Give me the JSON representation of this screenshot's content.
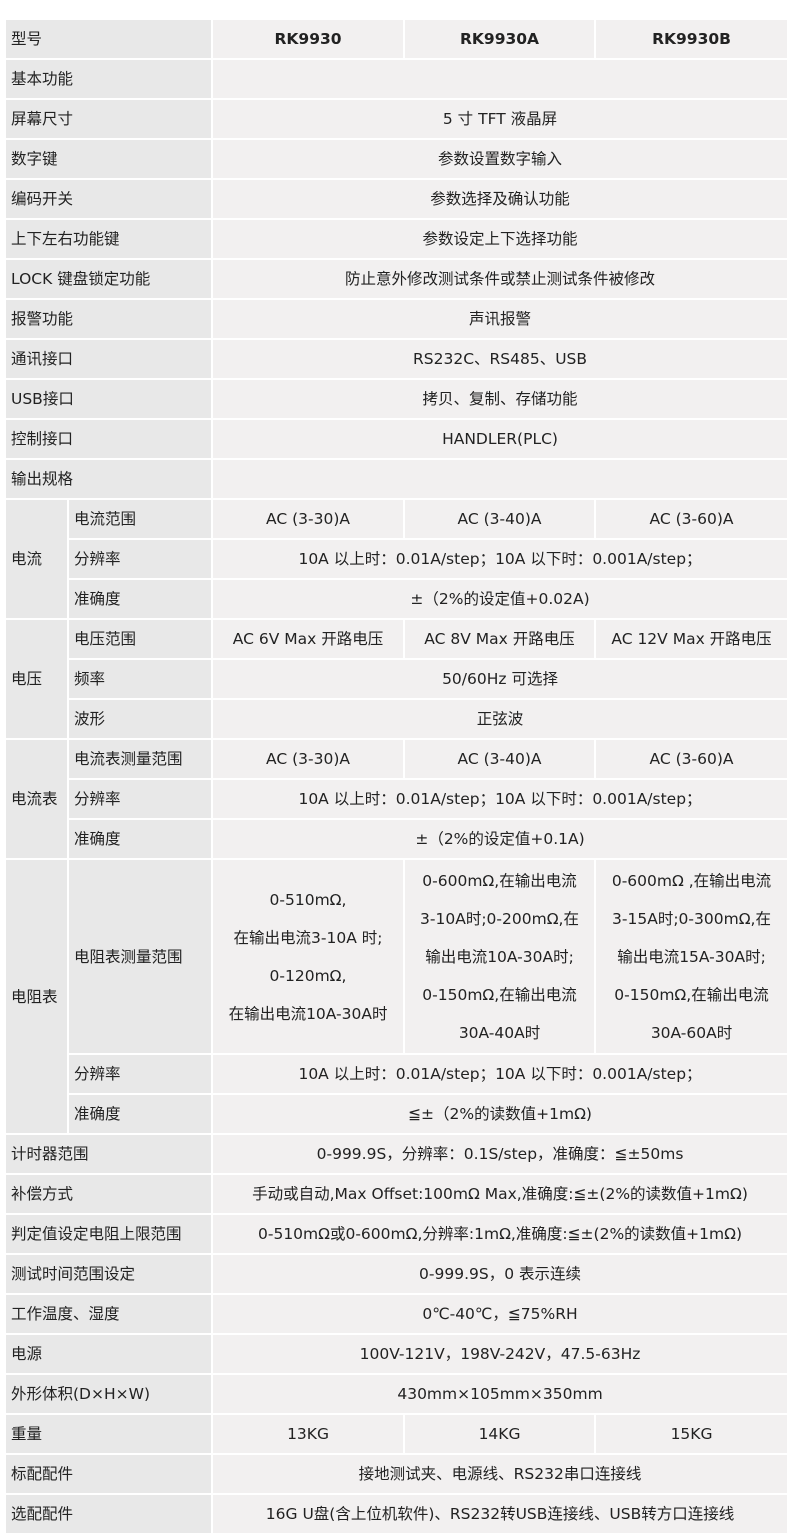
{
  "header": {
    "label": "型号",
    "models": [
      "RK9930",
      "RK9930A",
      "RK9930B"
    ]
  },
  "rows": [
    {
      "label": "基本功能",
      "value": ""
    },
    {
      "label": "屏幕尺寸",
      "value": "5 寸 TFT 液晶屏"
    },
    {
      "label": "数字键",
      "value": "参数设置数字输入"
    },
    {
      "label": "编码开关",
      "value": "参数选择及确认功能"
    },
    {
      "label": "上下左右功能键",
      "value": "参数设定上下选择功能"
    },
    {
      "label": "LOCK 键盘锁定功能",
      "value": "防止意外修改测试条件或禁止测试条件被修改"
    },
    {
      "label": "报警功能",
      "value": "声讯报警"
    },
    {
      "label": "通讯接口",
      "value": "RS232C、RS485、USB"
    },
    {
      "label": "USB接口",
      "value": "拷贝、复制、存储功能"
    },
    {
      "label": "控制接口",
      "value": "HANDLER(PLC)"
    },
    {
      "label": "输出规格",
      "value": ""
    },
    {
      "group": "电流",
      "sub": [
        {
          "label": "电流范围",
          "values": [
            "AC (3-30)A",
            "AC (3-40)A",
            "AC (3-60)A"
          ]
        },
        {
          "label": "分辨率",
          "value": "10A 以上时：0.01A/step；10A 以下时：0.001A/step；"
        },
        {
          "label": "准确度",
          "value": "±（2%的设定值+0.02A)"
        }
      ]
    },
    {
      "group": "电压",
      "sub": [
        {
          "label": "电压范围",
          "values": [
            "AC 6V Max 开路电压",
            "AC 8V Max 开路电压",
            "AC 12V Max 开路电压"
          ]
        },
        {
          "label": "频率",
          "value": "50/60Hz 可选择"
        },
        {
          "label": "波形",
          "value": "正弦波"
        }
      ]
    },
    {
      "group": "电流表",
      "sub": [
        {
          "label": "电流表测量范围",
          "values": [
            "AC (3-30)A",
            "AC (3-40)A",
            "AC (3-60)A"
          ]
        },
        {
          "label": "分辨率",
          "value": "10A 以上时：0.01A/step；10A 以下时：0.001A/step；"
        },
        {
          "label": "准确度",
          "value": "±（2%的设定值+0.1A)"
        }
      ]
    },
    {
      "group": "电阻表",
      "sub": [
        {
          "label": "电阻表测量范围",
          "big": true,
          "values": [
            "0-510mΩ,\n在输出电流3-10A 时;\n0-120mΩ,\n在输出电流10A-30A时",
            "0-600mΩ,在输出电流\n3-10A时;0-200mΩ,在\n输出电流10A-30A时;\n0-150mΩ,在输出电流\n30A-40A时",
            "0-600mΩ ,在输出电流\n3-15A时;0-300mΩ,在\n输出电流15A-30A时;\n0-150mΩ,在输出电流\n30A-60A时"
          ]
        },
        {
          "label": "分辨率",
          "value": "10A 以上时：0.01A/step；10A 以下时：0.001A/step；"
        },
        {
          "label": "准确度",
          "value": "≦±（2%的读数值+1mΩ)"
        }
      ]
    },
    {
      "label": "计时器范围",
      "value": "0-999.9S，分辨率：0.1S/step，准确度：≦±50ms"
    },
    {
      "label": "补偿方式",
      "value": "手动或自动,Max Offset:100mΩ Max,准确度:≦±(2%的读数值+1mΩ)"
    },
    {
      "label": "判定值设定电阻上限范围",
      "value": "0-510mΩ或0-600mΩ,分辨率:1mΩ,准确度:≦±(2%的读数值+1mΩ)"
    },
    {
      "label": "测试时间范围设定",
      "value": "0-999.9S，0 表示连续"
    },
    {
      "label": "工作温度、湿度",
      "value": "0℃-40℃，≦75%RH"
    },
    {
      "label": "电源",
      "value": "100V-121V，198V-242V，47.5-63Hz"
    },
    {
      "label": "外形体积(D×H×W)",
      "value": "430mm×105mm×350mm"
    },
    {
      "label": "重量",
      "values": [
        "13KG",
        "14KG",
        "15KG"
      ]
    },
    {
      "label": "标配配件",
      "value": "接地测试夹、电源线、RS232串口连接线"
    },
    {
      "label": "选配配件",
      "value": "16G U盘(含上位机软件)、RS232转USB连接线、USB转方口连接线"
    }
  ]
}
